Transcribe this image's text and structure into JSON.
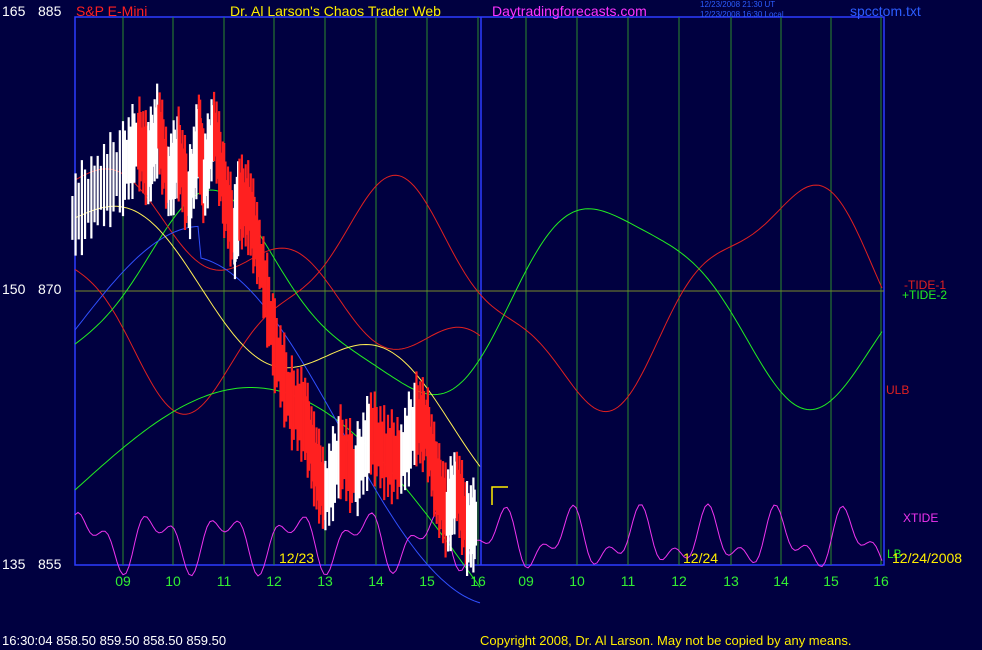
{
  "header": {
    "instrument": "S&P E-Mini",
    "title": "Dr. Al Larson's Chaos Trader Web",
    "site": "Daytradingforecasts.com",
    "ut_time": "12/23/2008 21:30 UT",
    "local_time": "12/23/2008 16:30 Local",
    "filename": "spcctom.txt"
  },
  "y_labels": {
    "top": {
      "a": "165",
      "b": "885"
    },
    "mid": {
      "a": "150",
      "b": "870"
    },
    "bottom": {
      "a": "135",
      "b": "855"
    }
  },
  "footer": {
    "quote": "16:30:04  858.50 859.50 858.50 859.50",
    "copyright": "Copyright 2008, Dr. Al Larson. May not be copied by any means."
  },
  "chart_data": {
    "type": "line",
    "title": "S&P E-Mini",
    "x_ticks": [
      "09",
      "10",
      "11",
      "12",
      "13",
      "14",
      "15",
      "16",
      "09",
      "10",
      "11",
      "12",
      "13",
      "14",
      "15",
      "16"
    ],
    "date_labels": [
      "12/23",
      "12/24",
      "12/24/2008"
    ],
    "ylim": [
      855,
      885
    ],
    "mid_level": 870,
    "series": [
      {
        "name": "-TIDE-1",
        "color": "#e02020"
      },
      {
        "name": "+TIDE-2",
        "color": "#22ee22"
      },
      {
        "name": "ULB",
        "color": "#e02020"
      },
      {
        "name": "XTIDE",
        "color": "#ee33ee"
      },
      {
        "name": "LB",
        "color": "#22ee22"
      }
    ],
    "price_points": [
      [
        0,
        874.0
      ],
      [
        0.5,
        875.5
      ],
      [
        1,
        876.7
      ],
      [
        1.3,
        878.2
      ],
      [
        1.5,
        877.0
      ],
      [
        1.7,
        879.0
      ],
      [
        1.9,
        876.0
      ],
      [
        2.1,
        877.5
      ],
      [
        2.3,
        875.0
      ],
      [
        2.5,
        878.5
      ],
      [
        2.6,
        876.0
      ],
      [
        2.8,
        879.0
      ],
      [
        3,
        875.5
      ],
      [
        3.2,
        873.0
      ],
      [
        3.3,
        875.0
      ],
      [
        3.5,
        874.5
      ],
      [
        3.7,
        872.0
      ],
      [
        4,
        867.0
      ],
      [
        4.3,
        864.0
      ],
      [
        4.6,
        863.0
      ],
      [
        4.8,
        860.5
      ],
      [
        5.0,
        858.8
      ],
      [
        5.3,
        861.2
      ],
      [
        5.6,
        860.0
      ],
      [
        5.9,
        862.2
      ],
      [
        6.2,
        861.0
      ],
      [
        6.5,
        860.8
      ],
      [
        6.8,
        863.0
      ],
      [
        7.0,
        862.5
      ],
      [
        7.2,
        859.5
      ],
      [
        7.4,
        857.8
      ],
      [
        7.6,
        859.3
      ],
      [
        7.8,
        857.0
      ],
      [
        8.0,
        857.3
      ]
    ]
  },
  "colors": {
    "background": "#000040",
    "grid_vertical": "#2c8c2c",
    "border": "#2c3cff",
    "price_up": "#ffffff",
    "price_down": "#ff2020",
    "tick_text": "#33ee33",
    "date_text": "#ffee00",
    "magenta": "#ee33ee"
  }
}
